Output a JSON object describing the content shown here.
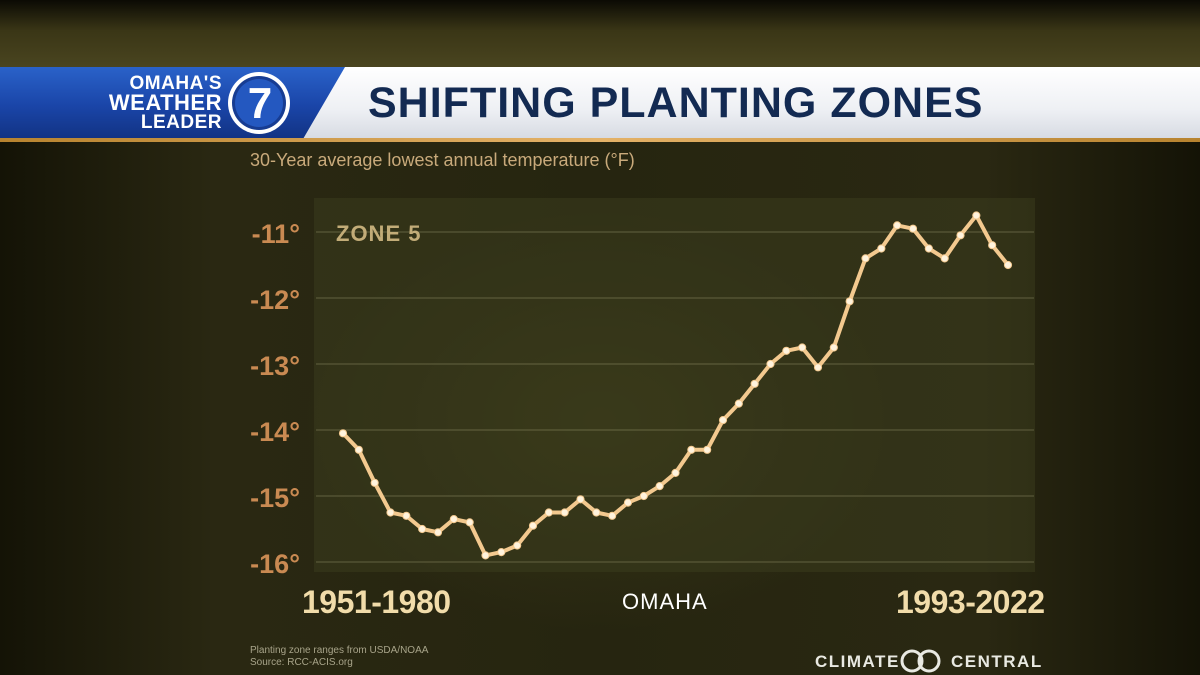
{
  "header": {
    "logo_lines": [
      "OMAHA'S",
      "WEATHER",
      "LEADER"
    ],
    "logo_channel": "7",
    "title": "SHIFTING PLANTING ZONES"
  },
  "colors": {
    "banner_blue": "#1a45a8",
    "title_text": "#132a52",
    "accent_gold": "#e4b268",
    "line": "#f3c98f",
    "axis_labels": "#c98a52"
  },
  "chart_data": {
    "type": "line",
    "title": "SHIFTING PLANTING ZONES",
    "ylabel": "30-Year average lowest annual temperature (°F)",
    "annotation": "ZONE 5",
    "location": "OMAHA",
    "x_start_label": "1951-1980",
    "x_end_label": "1993-2022",
    "x": [
      "1951-1980",
      "1952-1981",
      "1953-1982",
      "1954-1983",
      "1955-1984",
      "1956-1985",
      "1957-1986",
      "1958-1987",
      "1959-1988",
      "1960-1989",
      "1961-1990",
      "1962-1991",
      "1963-1992",
      "1964-1993",
      "1965-1994",
      "1966-1995",
      "1967-1996",
      "1968-1997",
      "1969-1998",
      "1970-1999",
      "1971-2000",
      "1972-2001",
      "1973-2002",
      "1974-2003",
      "1975-2004",
      "1976-2005",
      "1977-2006",
      "1978-2007",
      "1979-2008",
      "1980-2009",
      "1981-2010",
      "1982-2011",
      "1983-2012",
      "1984-2013",
      "1985-2014",
      "1986-2015",
      "1987-2016",
      "1988-2017",
      "1989-2018",
      "1990-2019",
      "1991-2020",
      "1992-2021",
      "1993-2022"
    ],
    "series": [
      {
        "values": [
          -14.05,
          -14.3,
          -14.8,
          -15.25,
          -15.3,
          -15.5,
          -15.55,
          -15.35,
          -15.4,
          -15.9,
          -15.85,
          -15.75,
          -15.45,
          -15.25,
          -15.25,
          -15.05,
          -15.25,
          -15.3,
          -15.1,
          -15.0,
          -14.85,
          -14.65,
          -14.3,
          -14.3,
          -13.85,
          -13.6,
          -13.3,
          -13.0,
          -12.8,
          -12.75,
          -13.05,
          -12.75,
          -12.05,
          -11.4,
          -11.25,
          -10.9,
          -10.95,
          -11.25,
          -11.4,
          -11.05,
          -10.75,
          -11.2,
          -11.5
        ]
      }
    ],
    "yticks": [
      -11,
      -12,
      -13,
      -14,
      -15,
      -16
    ],
    "ytick_labels": [
      "-11°",
      "-12°",
      "-13°",
      "-14°",
      "-15°",
      "-16°"
    ],
    "ylim": [
      -16.1,
      -10.5
    ],
    "grid": true
  },
  "footer": {
    "source_lines": [
      "Planting zone ranges from USDA/NOAA",
      "Source: RCC-ACIS.org"
    ],
    "brand_left": "CLIMATE",
    "brand_right": "CENTRAL"
  }
}
